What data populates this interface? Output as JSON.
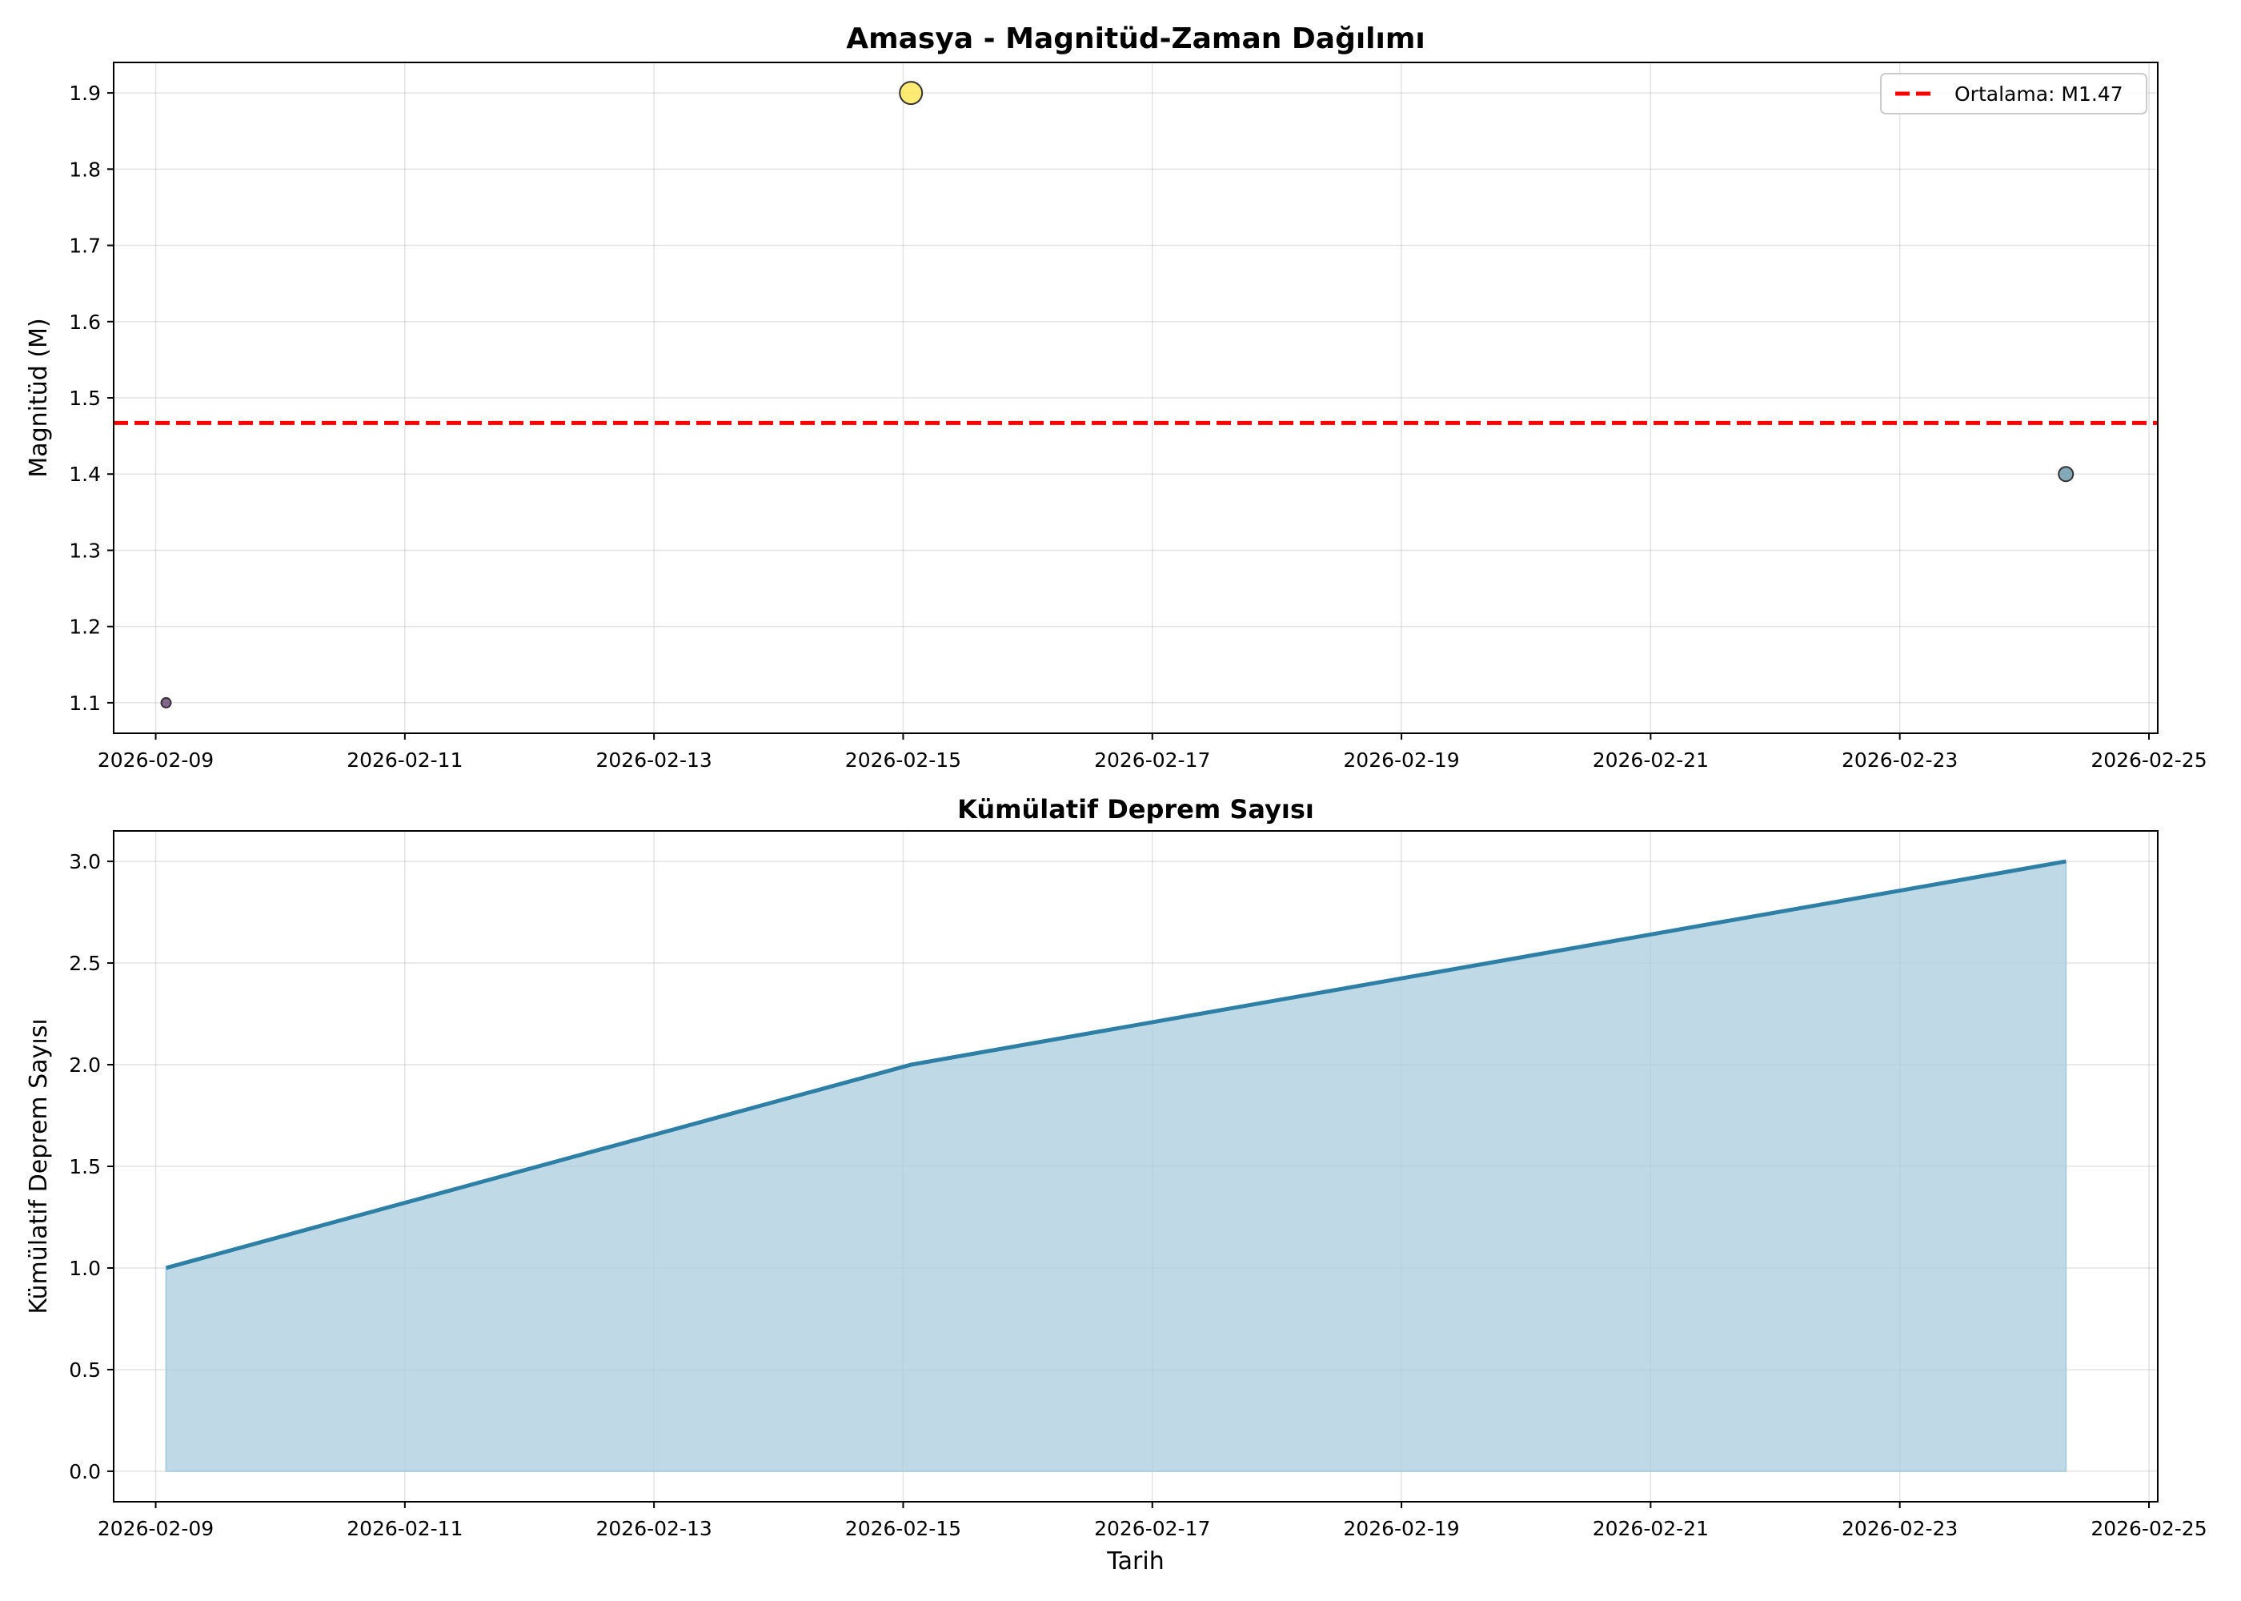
{
  "chart_data": [
    {
      "type": "scatter",
      "title": "Amasya - Magnitüd-Zaman Dağılımı",
      "xlabel": "",
      "ylabel": "Magnitüd (M)",
      "x_type": "date",
      "xlim": [
        "2026-02-08T15:54",
        "2026-02-25T01:42"
      ],
      "ylim": [
        1.06,
        1.94
      ],
      "x_ticks": [
        "2026-02-09",
        "2026-02-11",
        "2026-02-13",
        "2026-02-15",
        "2026-02-17",
        "2026-02-19",
        "2026-02-21",
        "2026-02-23",
        "2026-02-25"
      ],
      "y_ticks": [
        "1.1",
        "1.2",
        "1.3",
        "1.4",
        "1.5",
        "1.6",
        "1.7",
        "1.8",
        "1.9"
      ],
      "grid": true,
      "legend_position": "top-right",
      "points": [
        {
          "x": "2026-02-09T02:00",
          "y": 1.1,
          "color": "#6f4b7b"
        },
        {
          "x": "2026-02-15T01:30",
          "y": 1.9,
          "color": "#fde85c"
        },
        {
          "x": "2026-02-24T08:00",
          "y": 1.4,
          "color": "#6f9bae"
        }
      ],
      "mean_line": {
        "label": "Ortalama: M1.47",
        "y": 1.467,
        "color": "#ff0000"
      }
    },
    {
      "type": "area",
      "title": "Kümülatif Deprem Sayısı",
      "xlabel": "Tarih",
      "ylabel": "Kümülatif Deprem Sayısı",
      "x_type": "date",
      "xlim": [
        "2026-02-08T15:54",
        "2026-02-25T01:42"
      ],
      "ylim": [
        -0.15,
        3.15
      ],
      "x_ticks": [
        "2026-02-09",
        "2026-02-11",
        "2026-02-13",
        "2026-02-15",
        "2026-02-17",
        "2026-02-19",
        "2026-02-21",
        "2026-02-23",
        "2026-02-25"
      ],
      "y_ticks": [
        "0.0",
        "0.5",
        "1.0",
        "1.5",
        "2.0",
        "2.5",
        "3.0"
      ],
      "grid": true,
      "x": [
        "2026-02-09T02:00",
        "2026-02-15T01:30",
        "2026-02-24T08:00"
      ],
      "values": [
        1,
        2,
        3
      ],
      "line_color": "#2e7fa6",
      "fill_color": "#a9cedd"
    }
  ]
}
